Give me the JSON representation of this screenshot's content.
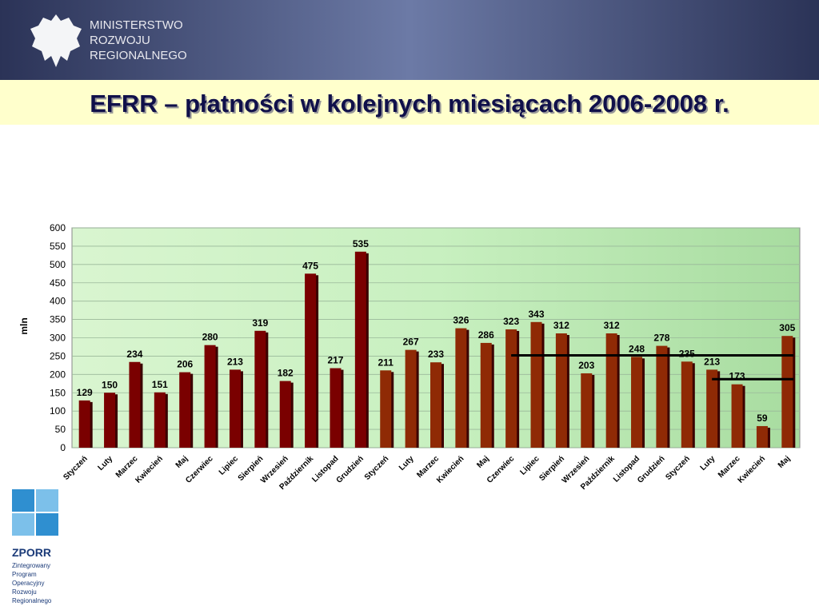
{
  "header": {
    "ministry": [
      "MINISTERSTWO",
      "ROZWOJU",
      "REGIONALNEGO"
    ],
    "title": "EFRR – płatności w kolejnych miesiącach 2006-2008 r."
  },
  "logo": {
    "name": "ZPORR",
    "lines": [
      "Zintegrowany",
      "Program",
      "Operacyjny",
      "Rozwoju",
      "Regionalnego"
    ]
  },
  "chart_data": {
    "type": "bar",
    "ylabel": "mln",
    "categories": [
      "Styczeń",
      "Luty",
      "Marzec",
      "Kwiecień",
      "Maj",
      "Czerwiec",
      "Lipiec",
      "Sierpień",
      "Wrzesień",
      "Październik",
      "Listopad",
      "Grudzień",
      "Styczeń",
      "Luty",
      "Marzec",
      "Kwiecień",
      "Maj",
      "Czerwiec",
      "Lipiec",
      "Sierpień",
      "Wrzesień",
      "Październik",
      "Listopad",
      "Grudzień",
      "Styczeń",
      "Luty",
      "Marzec",
      "Kwiecień",
      "Maj"
    ],
    "values": [
      129,
      150,
      234,
      151,
      206,
      280,
      213,
      319,
      182,
      475,
      217,
      535,
      211,
      267,
      233,
      326,
      286,
      323,
      343,
      312,
      203,
      312,
      248,
      278,
      235,
      213,
      173,
      59,
      305
    ],
    "colors": [
      "#7a0000",
      "#7a0000",
      "#7a0000",
      "#7a0000",
      "#7a0000",
      "#7a0000",
      "#7a0000",
      "#7a0000",
      "#7a0000",
      "#7a0000",
      "#7a0000",
      "#7a0000",
      "#8f2a05",
      "#8f2a05",
      "#8f2a05",
      "#8f2a05",
      "#8f2a05",
      "#8f2a05",
      "#8f2a05",
      "#8f2a05",
      "#8f2a05",
      "#8f2a05",
      "#8f2a05",
      "#8f2a05",
      "#8f2a05",
      "#8f2a05",
      "#8f2a05",
      "#8f2a05",
      "#8f2a05"
    ],
    "reference_lines": [
      {
        "value": 252,
        "from": 17,
        "to": 28
      },
      {
        "value": 187,
        "from": 25,
        "to": 28
      }
    ],
    "ylim": [
      0,
      600
    ],
    "yticks": [
      0,
      50,
      100,
      150,
      200,
      250,
      300,
      350,
      400,
      450,
      500,
      550,
      600
    ],
    "grid": true
  }
}
